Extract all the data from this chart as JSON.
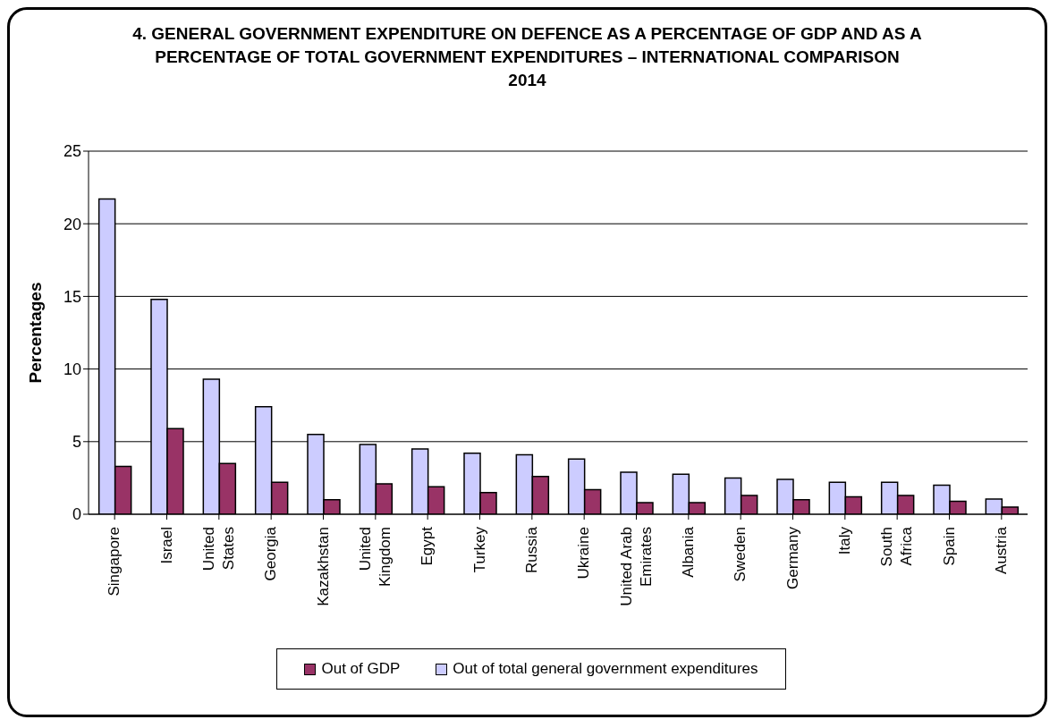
{
  "chart_data": {
    "type": "bar",
    "title": "4. GENERAL GOVERNMENT EXPENDITURE ON DEFENCE AS A PERCENTAGE OF GDP AND AS A PERCENTAGE OF TOTAL GOVERNMENT EXPENDITURES –  INTERNATIONAL COMPARISON",
    "subtitle": "2014",
    "ylabel": "Percentages",
    "categories": [
      "Singapore",
      "Israel",
      "United States",
      "Georgia",
      "Kazakhstan",
      "United Kingdom",
      "Egypt",
      "Turkey",
      "Russia",
      "Ukraine",
      "United Arab Emirates",
      "Albania",
      "Sweden",
      "Germany",
      "Italy",
      "South Africa",
      "Spain",
      "Austria"
    ],
    "series": [
      {
        "name": "Out of total general government expenditures",
        "color": "#ccccff",
        "values": [
          21.7,
          14.8,
          9.3,
          7.4,
          5.5,
          4.8,
          4.5,
          4.2,
          4.1,
          3.8,
          2.9,
          2.75,
          2.5,
          2.4,
          2.2,
          2.2,
          2.0,
          1.05
        ]
      },
      {
        "name": "Out of GDP",
        "color": "#993366",
        "values": [
          3.3,
          5.9,
          3.5,
          2.2,
          1.0,
          2.1,
          1.9,
          1.5,
          2.6,
          1.7,
          0.8,
          0.8,
          1.3,
          1.0,
          1.2,
          1.3,
          0.9,
          0.5
        ]
      }
    ],
    "ylim": [
      0,
      25
    ],
    "yticks": [
      0,
      5,
      10,
      15,
      20,
      25
    ],
    "grid": "y",
    "legend": "bottom"
  }
}
